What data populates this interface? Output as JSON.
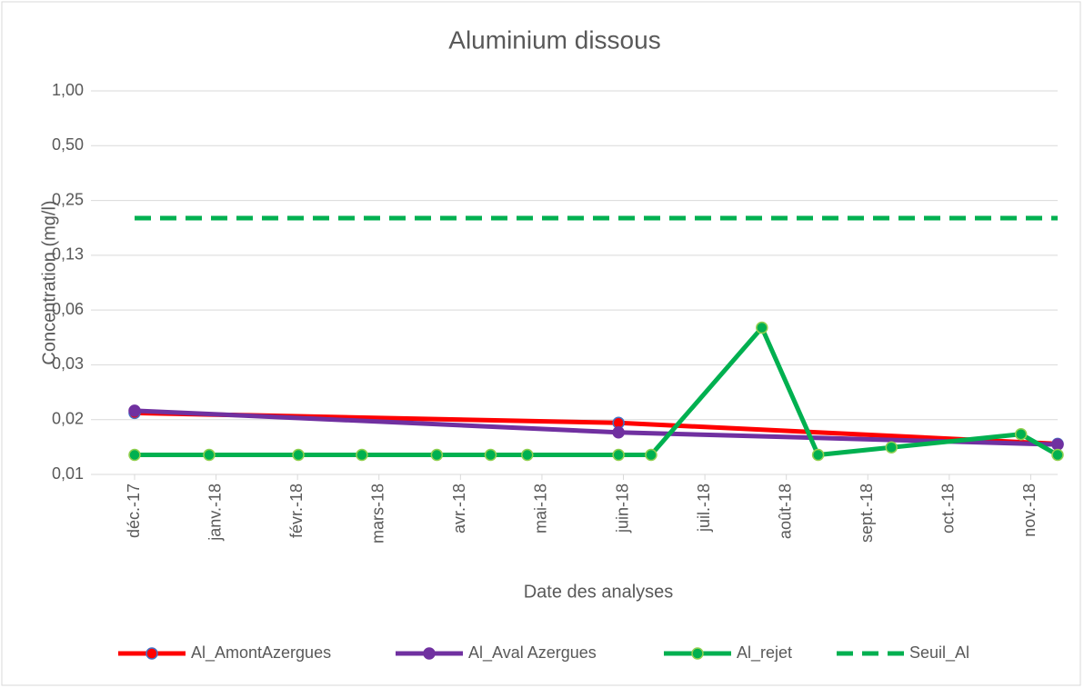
{
  "chart_data": {
    "type": "line",
    "title": "Aluminium dissous",
    "x_label": "Date des analyses",
    "y_label": "Concentration (mg/l)",
    "yscale": "log",
    "log_base": 2,
    "ylim": [
      0.0078125,
      1
    ],
    "yticks": [
      {
        "value": 0.0078125,
        "label": "0,01"
      },
      {
        "value": 0.015625,
        "label": "0,02"
      },
      {
        "value": 0.03125,
        "label": "0,03"
      },
      {
        "value": 0.0625,
        "label": "0,06"
      },
      {
        "value": 0.125,
        "label": "0,13"
      },
      {
        "value": 0.25,
        "label": "0,25"
      },
      {
        "value": 0.5,
        "label": "0,50"
      },
      {
        "value": 1,
        "label": "1,00"
      }
    ],
    "xlim": [
      0,
      11.33
    ],
    "xticks": [
      {
        "value": 0,
        "label": "déc.-17"
      },
      {
        "value": 1,
        "label": "janv.-18"
      },
      {
        "value": 2,
        "label": "févr.-18"
      },
      {
        "value": 3,
        "label": "mars-18"
      },
      {
        "value": 4,
        "label": "avr.-18"
      },
      {
        "value": 5,
        "label": "mai-18"
      },
      {
        "value": 6,
        "label": "juin-18"
      },
      {
        "value": 7,
        "label": "juil.-18"
      },
      {
        "value": 8,
        "label": "août-18"
      },
      {
        "value": 9,
        "label": "sept.-18"
      },
      {
        "value": 10,
        "label": "oct.-18"
      },
      {
        "value": 11,
        "label": "nov.-18"
      }
    ],
    "grid": true,
    "legend": "bottom",
    "series": [
      {
        "name": "Al_AmontAzergues",
        "color": "#ff0000",
        "marker_color": "#4472c4",
        "marker": true,
        "dashed": false,
        "x": [
          0,
          5.94,
          11.33
        ],
        "values": [
          0.017,
          0.015,
          0.0115
        ]
      },
      {
        "name": "Al_Aval Azergues",
        "color": "#7030a0",
        "marker_color": "#7030a0",
        "marker": true,
        "dashed": false,
        "x": [
          0,
          5.94,
          11.33
        ],
        "values": [
          0.0175,
          0.0133,
          0.0114
        ]
      },
      {
        "name": "Al_rejet",
        "color": "#00b050",
        "marker_color": "#92d050",
        "marker": true,
        "dashed": false,
        "x": [
          0,
          0.915,
          2.01,
          2.79,
          3.71,
          4.37,
          4.82,
          5.94,
          6.34,
          7.7,
          8.39,
          9.29,
          10.88,
          11.33
        ],
        "values": [
          0.01,
          0.01,
          0.01,
          0.01,
          0.01,
          0.01,
          0.01,
          0.01,
          0.01,
          0.05,
          0.01,
          0.011,
          0.013,
          0.01
        ]
      },
      {
        "name": "Seuil_Al",
        "color": "#00b050",
        "marker": false,
        "dashed": true,
        "x": [
          0,
          11.33
        ],
        "values": [
          0.2,
          0.2
        ]
      }
    ]
  }
}
